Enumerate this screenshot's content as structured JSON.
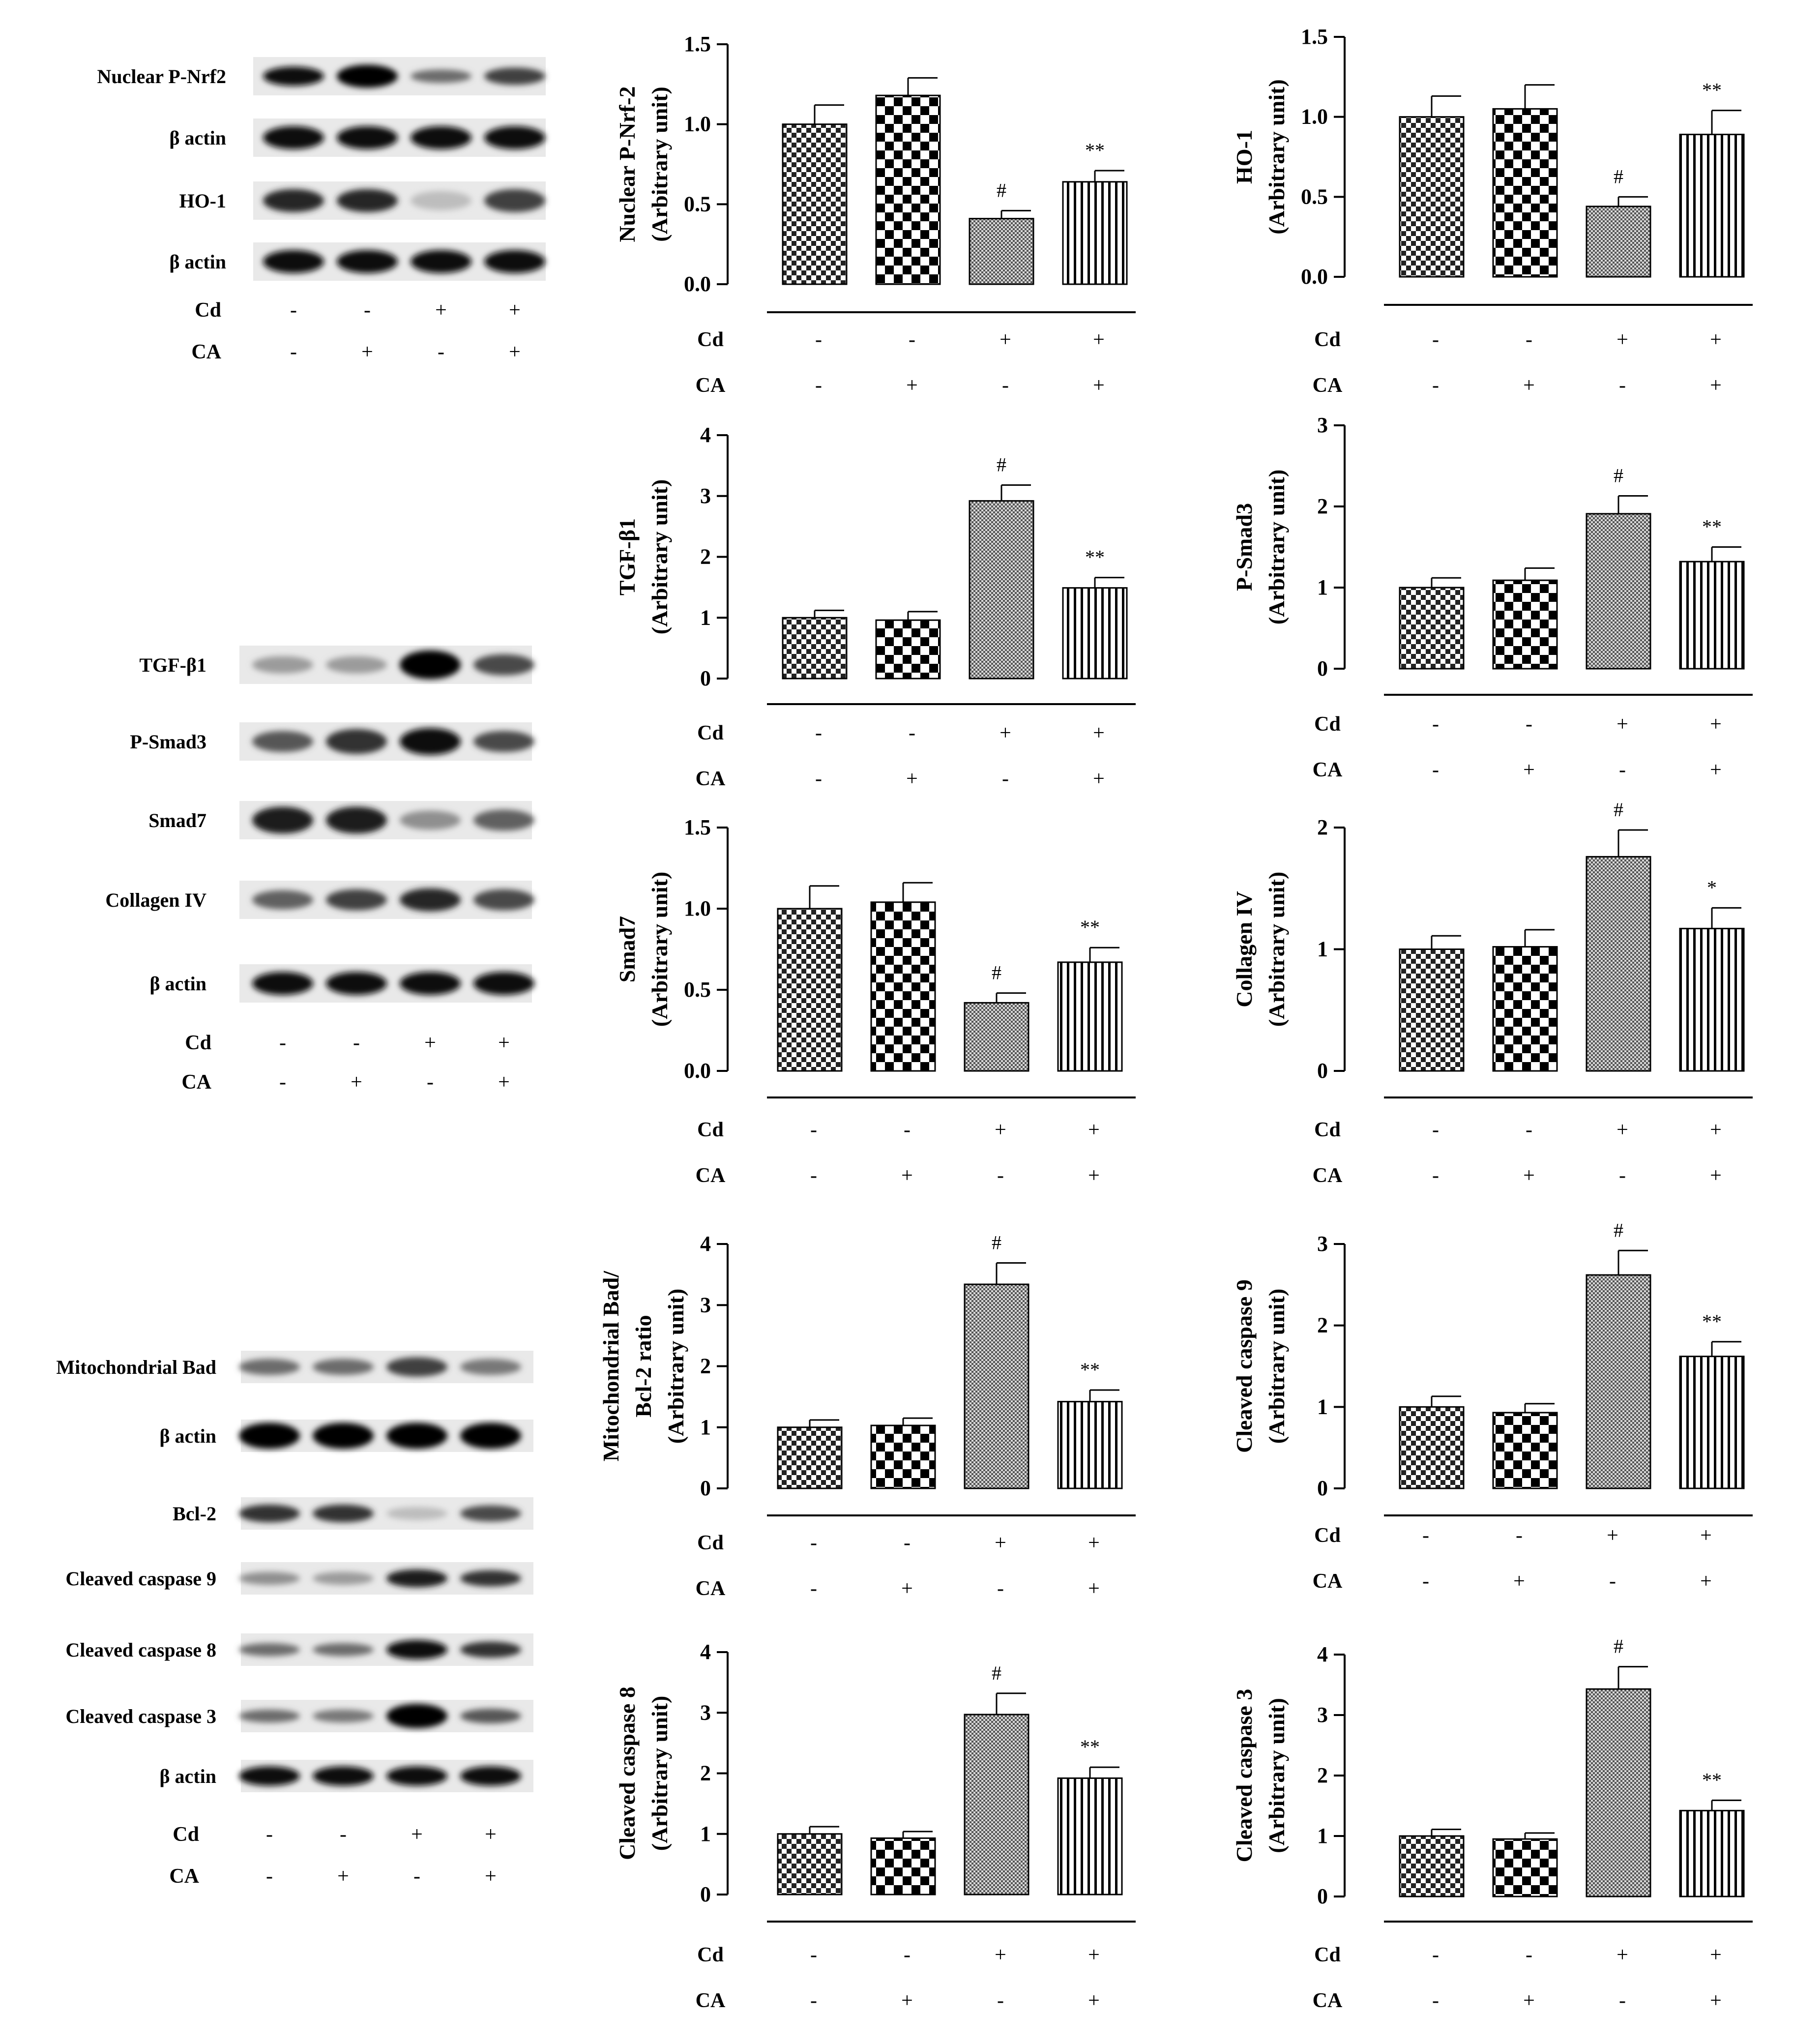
{
  "treatment_labels": {
    "cd": "Cd",
    "ca": "CA"
  },
  "groups": {
    "cd": [
      "-",
      "-",
      "+",
      "+"
    ],
    "ca": [
      "-",
      "+",
      "-",
      "+"
    ]
  },
  "blots": [
    {
      "id": "blot-1",
      "rows": [
        {
          "label": "Nuclear P-Nrf2",
          "intensity": [
            0.95,
            1.0,
            0.55,
            0.75
          ],
          "thickness": [
            0.5,
            0.6,
            0.35,
            0.45
          ]
        },
        {
          "label": "β actin",
          "intensity": [
            0.95,
            0.95,
            0.95,
            0.95
          ],
          "thickness": [
            0.6,
            0.6,
            0.6,
            0.6
          ]
        },
        {
          "label": "HO-1",
          "intensity": [
            0.85,
            0.85,
            0.2,
            0.75
          ],
          "thickness": [
            0.6,
            0.6,
            0.5,
            0.6
          ]
        },
        {
          "label": "β actin",
          "intensity": [
            0.95,
            0.95,
            0.95,
            0.95
          ],
          "thickness": [
            0.6,
            0.6,
            0.6,
            0.6
          ]
        }
      ]
    },
    {
      "id": "blot-2",
      "rows": [
        {
          "label": "TGF-β1",
          "intensity": [
            0.35,
            0.35,
            1.0,
            0.7
          ],
          "thickness": [
            0.45,
            0.45,
            0.75,
            0.55
          ]
        },
        {
          "label": "P-Smad3",
          "intensity": [
            0.65,
            0.8,
            0.95,
            0.7
          ],
          "thickness": [
            0.55,
            0.65,
            0.7,
            0.55
          ]
        },
        {
          "label": "Smad7",
          "intensity": [
            0.9,
            0.9,
            0.4,
            0.6
          ],
          "thickness": [
            0.7,
            0.7,
            0.5,
            0.55
          ]
        },
        {
          "label": "Collagen IV",
          "intensity": [
            0.6,
            0.75,
            0.85,
            0.7
          ],
          "thickness": [
            0.5,
            0.55,
            0.6,
            0.55
          ]
        },
        {
          "label": "β actin",
          "intensity": [
            0.95,
            0.95,
            0.95,
            0.95
          ],
          "thickness": [
            0.6,
            0.6,
            0.6,
            0.6
          ]
        }
      ]
    },
    {
      "id": "blot-3",
      "rows": [
        {
          "label": "Mitochondrial  Bad",
          "intensity": [
            0.55,
            0.55,
            0.75,
            0.5
          ],
          "thickness": [
            0.5,
            0.5,
            0.6,
            0.5
          ]
        },
        {
          "label": "β actin",
          "intensity": [
            1.0,
            1.0,
            1.0,
            1.0
          ],
          "thickness": [
            0.8,
            0.8,
            0.8,
            0.8
          ]
        },
        {
          "label": "Bcl-2",
          "intensity": [
            0.8,
            0.8,
            0.2,
            0.7
          ],
          "thickness": [
            0.55,
            0.55,
            0.4,
            0.5
          ]
        },
        {
          "label": "Cleaved caspase 9",
          "intensity": [
            0.4,
            0.35,
            0.9,
            0.8
          ],
          "thickness": [
            0.4,
            0.4,
            0.55,
            0.5
          ]
        },
        {
          "label": "Cleaved caspase 8",
          "intensity": [
            0.55,
            0.55,
            0.95,
            0.8
          ],
          "thickness": [
            0.4,
            0.4,
            0.6,
            0.5
          ]
        },
        {
          "label": "Cleaved caspase 3",
          "intensity": [
            0.55,
            0.5,
            1.0,
            0.65
          ],
          "thickness": [
            0.4,
            0.4,
            0.75,
            0.45
          ]
        },
        {
          "label": "β actin",
          "intensity": [
            0.95,
            0.95,
            0.95,
            0.95
          ],
          "thickness": [
            0.6,
            0.6,
            0.6,
            0.6
          ]
        }
      ]
    }
  ],
  "chart_data": [
    {
      "type": "bar",
      "ylabel": [
        "Nuclear P-Nrf-2",
        "(Arbitrary unit)"
      ],
      "ylim": [
        0,
        1.5
      ],
      "yticks": [
        0.0,
        0.5,
        1.0,
        1.5
      ],
      "tick_labels": [
        "0.0",
        "0.5",
        "1.0",
        "1.5"
      ],
      "values": [
        1.0,
        1.18,
        0.41,
        0.64
      ],
      "errors": [
        0.12,
        0.11,
        0.05,
        0.07
      ],
      "annotations": [
        "",
        "",
        "#",
        "**"
      ]
    },
    {
      "type": "bar",
      "ylabel": [
        "HO-1",
        "(Arbitrary unit)"
      ],
      "ylim": [
        0,
        1.5
      ],
      "yticks": [
        0.0,
        0.5,
        1.0,
        1.5
      ],
      "tick_labels": [
        "0.0",
        "0.5",
        "1.0",
        "1.5"
      ],
      "values": [
        1.0,
        1.05,
        0.44,
        0.89
      ],
      "errors": [
        0.13,
        0.15,
        0.06,
        0.15
      ],
      "annotations": [
        "",
        "",
        "#",
        "**"
      ]
    },
    {
      "type": "bar",
      "ylabel": [
        "TGF-β1",
        "(Arbitrary unit)"
      ],
      "ylim": [
        0,
        4
      ],
      "yticks": [
        0,
        1,
        2,
        3,
        4
      ],
      "tick_labels": [
        "0",
        "1",
        "2",
        "3",
        "4"
      ],
      "values": [
        1.0,
        0.96,
        2.92,
        1.49
      ],
      "errors": [
        0.12,
        0.14,
        0.26,
        0.17
      ],
      "annotations": [
        "",
        "",
        "#",
        "**"
      ]
    },
    {
      "type": "bar",
      "ylabel": [
        "P-Smad3",
        "(Arbitrary unit)"
      ],
      "ylim": [
        0,
        3
      ],
      "yticks": [
        0,
        1,
        2,
        3
      ],
      "tick_labels": [
        "0",
        "1",
        "2",
        "3"
      ],
      "values": [
        1.0,
        1.09,
        1.91,
        1.32
      ],
      "errors": [
        0.12,
        0.15,
        0.22,
        0.18
      ],
      "annotations": [
        "",
        "",
        "#",
        "**"
      ]
    },
    {
      "type": "bar",
      "ylabel": [
        "Smad7",
        "(Arbitrary unit)"
      ],
      "ylim": [
        0,
        1.5
      ],
      "yticks": [
        0.0,
        0.5,
        1.0,
        1.5
      ],
      "tick_labels": [
        "0.0",
        "0.5",
        "1.0",
        "1.5"
      ],
      "values": [
        1.0,
        1.04,
        0.42,
        0.67
      ],
      "errors": [
        0.14,
        0.12,
        0.06,
        0.09
      ],
      "annotations": [
        "",
        "",
        "#",
        "**"
      ]
    },
    {
      "type": "bar",
      "ylabel": [
        "Collagen IV",
        "(Arbitrary unit)"
      ],
      "ylim": [
        0,
        2
      ],
      "yticks": [
        0,
        1,
        2
      ],
      "tick_labels": [
        "0",
        "1",
        "2"
      ],
      "values": [
        1.0,
        1.02,
        1.76,
        1.17
      ],
      "errors": [
        0.11,
        0.14,
        0.22,
        0.17
      ],
      "annotations": [
        "",
        "",
        "#",
        "*"
      ]
    },
    {
      "type": "bar",
      "ylabel": [
        "Mitochondrial Bad/",
        "Bcl-2 ratio",
        "(Arbitrary unit)"
      ],
      "ylim": [
        0,
        4
      ],
      "yticks": [
        0,
        1,
        2,
        3,
        4
      ],
      "tick_labels": [
        "0",
        "1",
        "2",
        "3",
        "4"
      ],
      "values": [
        1.0,
        1.03,
        3.34,
        1.42
      ],
      "errors": [
        0.12,
        0.12,
        0.35,
        0.19
      ],
      "annotations": [
        "",
        "",
        "#",
        "**"
      ]
    },
    {
      "type": "bar",
      "ylabel": [
        "Cleaved caspase 9",
        "(Arbitrary unit)"
      ],
      "ylim": [
        0,
        3
      ],
      "yticks": [
        0,
        1,
        2,
        3
      ],
      "tick_labels": [
        "0",
        "1",
        "2",
        "3"
      ],
      "values": [
        1.0,
        0.93,
        2.62,
        1.62
      ],
      "errors": [
        0.13,
        0.11,
        0.3,
        0.18
      ],
      "annotations": [
        "",
        "",
        "#",
        "**"
      ]
    },
    {
      "type": "bar",
      "ylabel": [
        "Cleaved caspase 8",
        "(Arbitrary unit)"
      ],
      "ylim": [
        0,
        4
      ],
      "yticks": [
        0,
        1,
        2,
        3,
        4
      ],
      "tick_labels": [
        "0",
        "1",
        "2",
        "3",
        "4"
      ],
      "values": [
        1.0,
        0.93,
        2.97,
        1.92
      ],
      "errors": [
        0.12,
        0.11,
        0.35,
        0.18
      ],
      "annotations": [
        "",
        "",
        "#",
        "**"
      ]
    },
    {
      "type": "bar",
      "ylabel": [
        "Cleaved caspase 3",
        "(Arbitrary unit)"
      ],
      "ylim": [
        0,
        4
      ],
      "yticks": [
        0,
        1,
        2,
        3,
        4
      ],
      "tick_labels": [
        "0",
        "1",
        "2",
        "3",
        "4"
      ],
      "values": [
        1.0,
        0.95,
        3.43,
        1.42
      ],
      "errors": [
        0.11,
        0.1,
        0.37,
        0.17
      ],
      "annotations": [
        "",
        "",
        "#",
        "**"
      ]
    }
  ]
}
